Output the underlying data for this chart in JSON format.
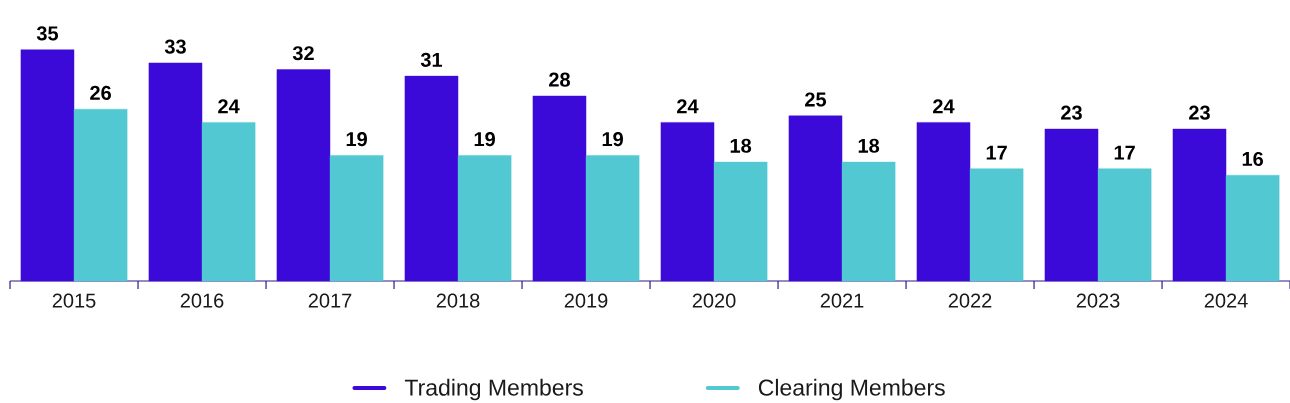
{
  "chart_data": {
    "type": "bar",
    "categories": [
      "2015",
      "2016",
      "2017",
      "2018",
      "2019",
      "2020",
      "2021",
      "2022",
      "2023",
      "2024"
    ],
    "series": [
      {
        "name": "Trading Members",
        "color": "#3c0ad8",
        "values": [
          35,
          33,
          32,
          31,
          28,
          24,
          25,
          24,
          23,
          23
        ]
      },
      {
        "name": "Clearing Members",
        "color": "#52c8d2",
        "values": [
          26,
          24,
          19,
          19,
          19,
          18,
          18,
          17,
          17,
          16
        ]
      }
    ],
    "data_labels": true,
    "legend": "bottom",
    "tick_labels": "x"
  }
}
